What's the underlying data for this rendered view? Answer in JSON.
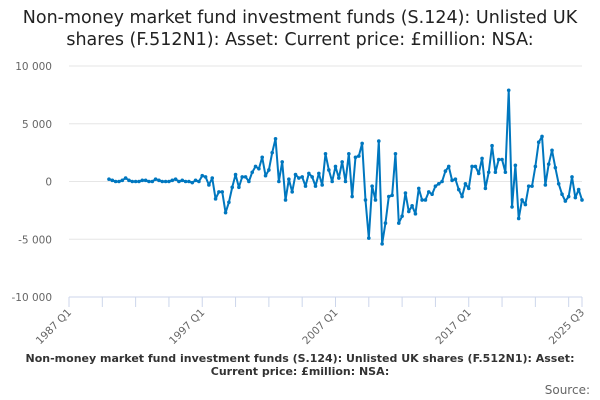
{
  "chart_data": {
    "type": "line",
    "title": "Non-money market fund investment funds (S.124): Unlisted UK shares (F.512N1): Asset: Current price: £million: NSA:",
    "xlabel": "Non-money market fund investment funds (S.124): Unlisted UK shares (F.512N1): Asset: Current price: £million: NSA:",
    "ylabel": "",
    "source_label": "Source:",
    "start_period": "1990 Q1",
    "x_ticks": [
      "1987 Q1",
      "1997 Q1",
      "2007 Q1",
      "2017 Q1",
      "2025 Q3"
    ],
    "y_ticks": [
      "10 000",
      "5 000",
      "0",
      "-5 000",
      "-10 000"
    ],
    "y_tick_values": [
      10000,
      5000,
      0,
      -5000,
      -10000
    ],
    "ylim": [
      -10000,
      10000
    ],
    "xlim": [
      "1987 Q1",
      "2025 Q3"
    ],
    "grid": true,
    "color": "#0077bf",
    "series": [
      {
        "name": "Unlisted UK shares",
        "values": [
          200,
          100,
          0,
          0,
          100,
          300,
          100,
          0,
          0,
          0,
          100,
          100,
          0,
          0,
          200,
          100,
          0,
          0,
          0,
          100,
          200,
          0,
          100,
          0,
          0,
          -100,
          100,
          0,
          500,
          400,
          -300,
          300,
          -1500,
          -900,
          -900,
          -2700,
          -1800,
          -500,
          600,
          -500,
          400,
          400,
          0,
          800,
          1300,
          1100,
          2100,
          500,
          1000,
          2500,
          3700,
          0,
          1700,
          -1600,
          200,
          -900,
          600,
          300,
          400,
          -400,
          700,
          400,
          -400,
          700,
          -300,
          2400,
          1000,
          0,
          1300,
          300,
          1700,
          0,
          2400,
          -1300,
          2100,
          2200,
          3300,
          -1600,
          -4900,
          -400,
          -1600,
          3500,
          -5400,
          -3600,
          -1300,
          -1200,
          2400,
          -3600,
          -3000,
          -1000,
          -2600,
          -2100,
          -2800,
          -600,
          -1600,
          -1600,
          -900,
          -1100,
          -400,
          -200,
          0,
          900,
          1300,
          100,
          200,
          -700,
          -1300,
          -200,
          -600,
          1300,
          1300,
          700,
          2000,
          -600,
          800,
          3100,
          800,
          1900,
          1900,
          800,
          7900,
          -2200,
          1400,
          -3200,
          -1600,
          -2000,
          -400,
          -400,
          1300,
          3400,
          3900,
          -300,
          1500,
          2700,
          1200,
          -200,
          -1100,
          -1700,
          -1300,
          400,
          -1400,
          -700,
          -1600
        ]
      }
    ]
  }
}
